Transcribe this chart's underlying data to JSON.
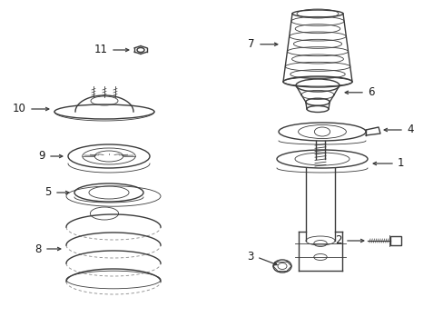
{
  "background_color": "#ffffff",
  "line_color": "#3a3a3a",
  "label_color": "#1a1a1a",
  "fig_width": 4.89,
  "fig_height": 3.6,
  "dpi": 100
}
